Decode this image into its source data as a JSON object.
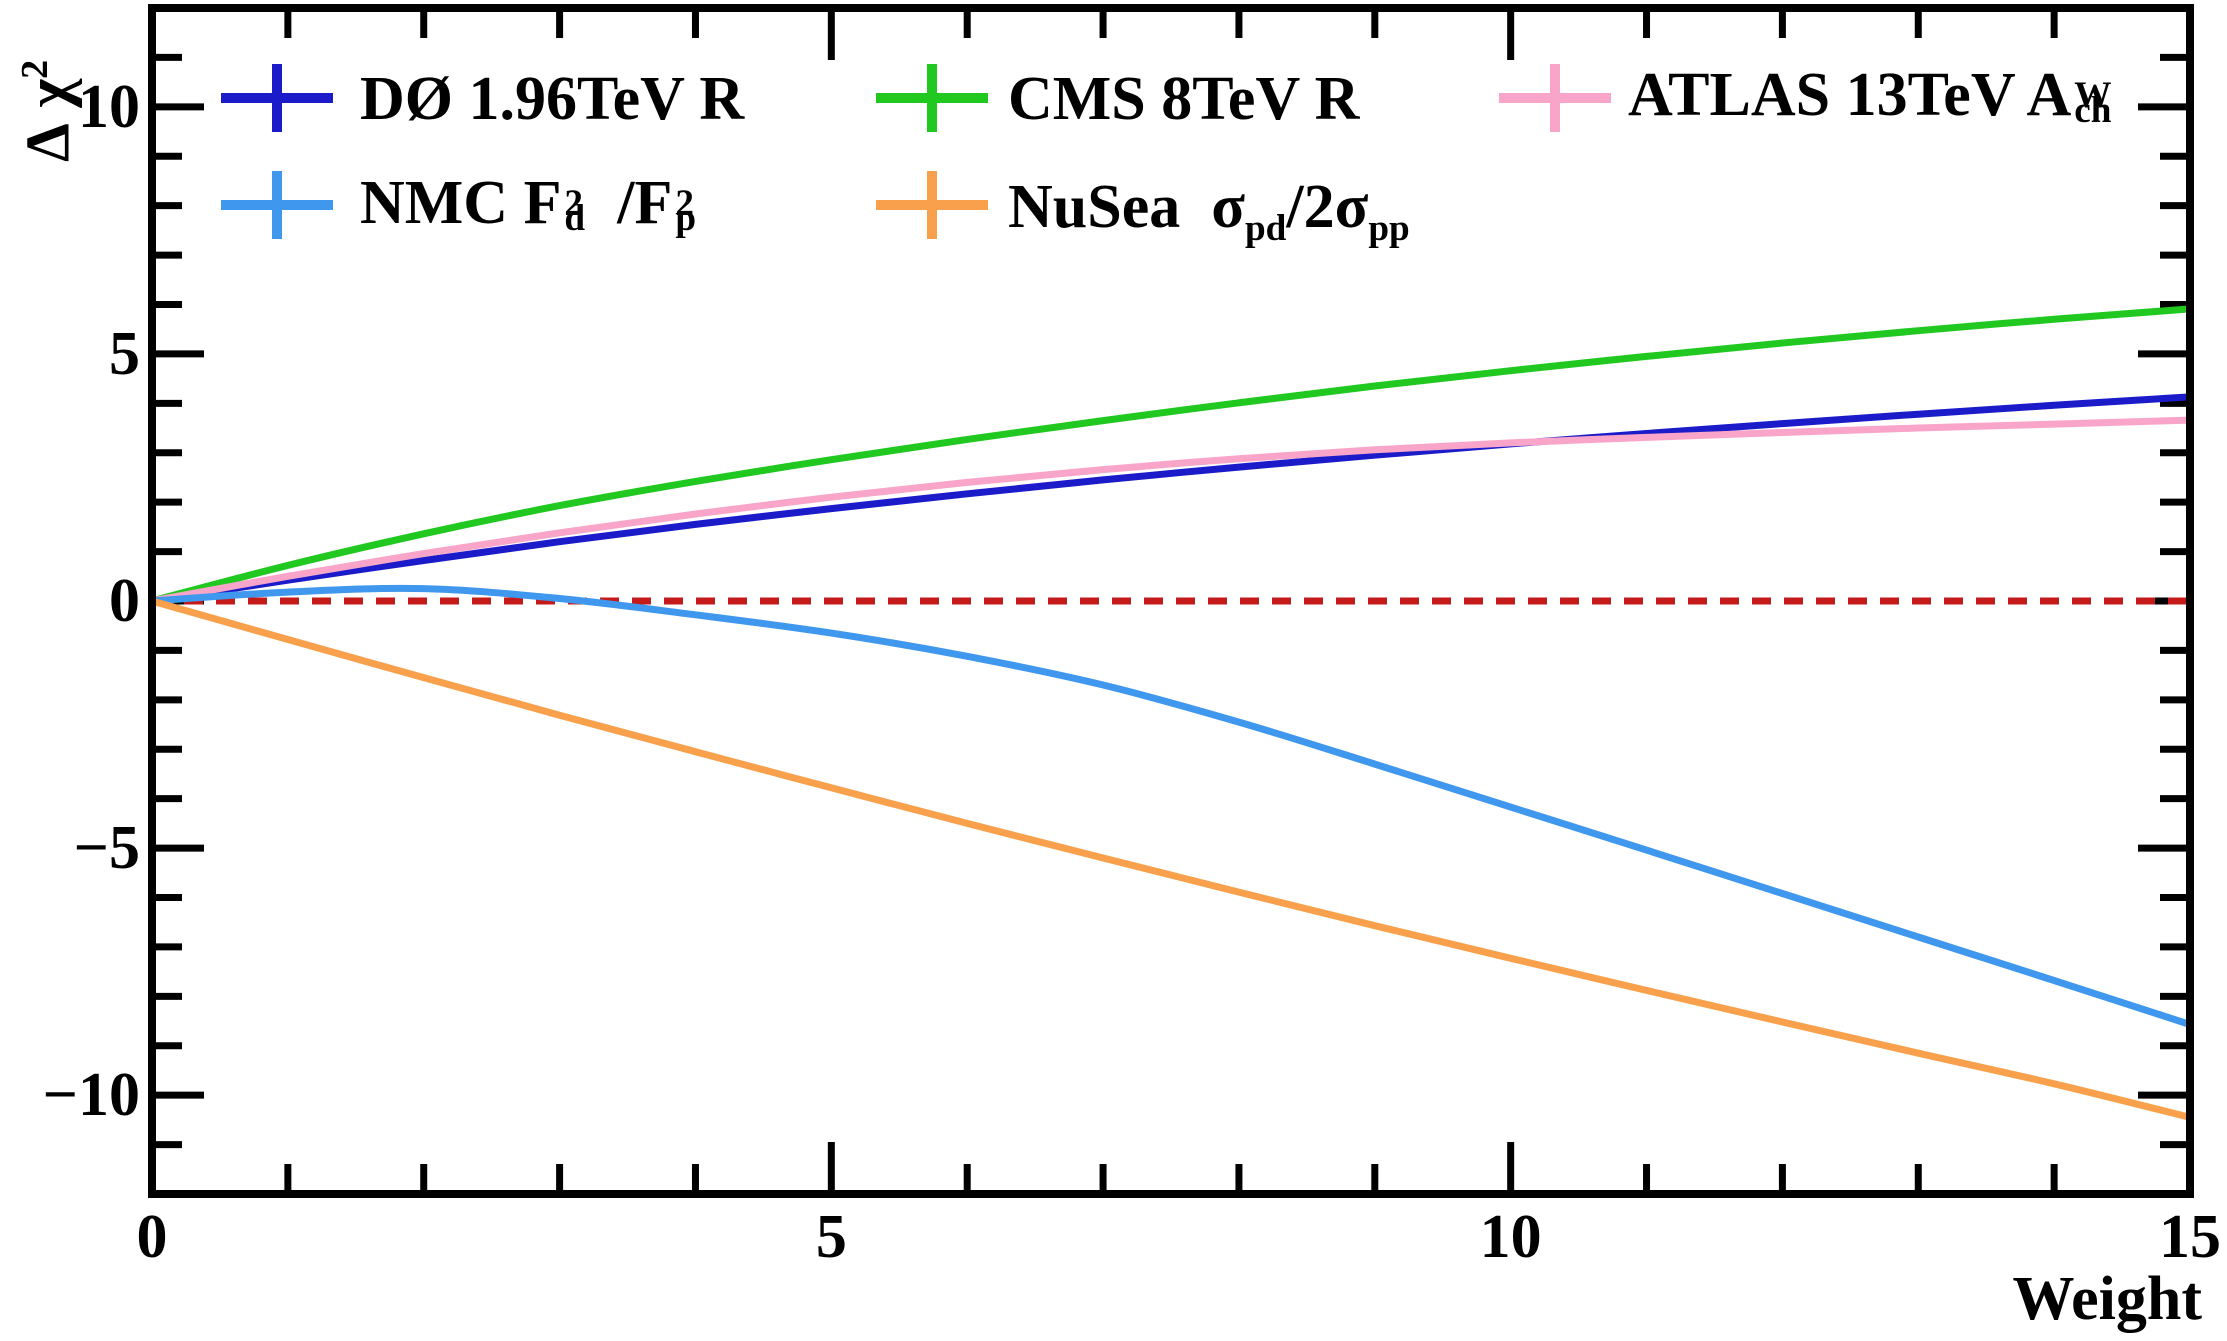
{
  "legend": {
    "rows": 2,
    "columns": 3,
    "items": [
      {
        "label": "DØ 1.96TeV R",
        "marker": "plus",
        "color": "#1B1BC9",
        "parts": [
          {
            "text": "DØ 1.96TeV R"
          }
        ]
      },
      {
        "label": "CMS 8TeV R",
        "marker": "plus",
        "color": "#20C820",
        "parts": [
          {
            "text": "CMS 8TeV R"
          }
        ]
      },
      {
        "label": "ATLAS 13TeV A_ch^W",
        "marker": "plus",
        "color": "#F9A5C9",
        "parts": [
          {
            "text": "ATLAS 13TeV A"
          },
          {
            "sup": "W",
            "sub": "ch"
          }
        ]
      },
      {
        "label": "NMC F_d^2/F_p^2",
        "marker": "plus",
        "color": "#3F97EE",
        "parts": [
          {
            "text": "NMC F"
          },
          {
            "sup": "2",
            "sub": "d"
          },
          {
            "text": "/F"
          },
          {
            "sup": "2",
            "sub": "p"
          }
        ]
      },
      {
        "label": "NuSea σ_pd/2σ_pp",
        "marker": "plus",
        "color": "#F8A04C",
        "parts": [
          {
            "text": "NuSea  σ"
          },
          {
            "sub": "pd"
          },
          {
            "text": "/2σ"
          },
          {
            "sub": "pp"
          }
        ]
      }
    ]
  },
  "chart_data": {
    "type": "line",
    "title": "",
    "xlabel": "Weight",
    "ylabel": "Δ χ²",
    "ylabel_parts": {
      "delta": "Δ ",
      "chi": "χ",
      "exp": "2"
    },
    "xlim": [
      0,
      15
    ],
    "ylim": [
      -12,
      12
    ],
    "grid": false,
    "legend_position": "top-inside",
    "x_ticks": {
      "major": [
        {
          "v": 0,
          "label": "0"
        },
        {
          "v": 5,
          "label": "5"
        },
        {
          "v": 10,
          "label": "10"
        },
        {
          "v": 15,
          "label": "15"
        }
      ],
      "minor_step": 1
    },
    "y_ticks": {
      "major": [
        {
          "v": -10,
          "label": "−10"
        },
        {
          "v": -5,
          "label": "−5"
        },
        {
          "v": 0,
          "label": "0"
        },
        {
          "v": 5,
          "label": "5"
        },
        {
          "v": 10,
          "label": "10"
        }
      ],
      "minor_step": 1
    },
    "reference_line": {
      "y": 0,
      "color": "#C41A1A",
      "style": "dashed"
    },
    "x": [
      0,
      1,
      2,
      3,
      4,
      5,
      6,
      7,
      8,
      9,
      10,
      11,
      12,
      13,
      14,
      15
    ],
    "series": [
      {
        "name": "DØ 1.96TeV R",
        "color": "#1B1BC9",
        "values": [
          0,
          0.42,
          0.82,
          1.2,
          1.55,
          1.87,
          2.17,
          2.45,
          2.71,
          2.95,
          3.18,
          3.39,
          3.59,
          3.78,
          3.96,
          4.13
        ]
      },
      {
        "name": "CMS 8TeV R",
        "color": "#20C820",
        "values": [
          0,
          0.72,
          1.36,
          1.93,
          2.42,
          2.86,
          3.27,
          3.65,
          4.01,
          4.35,
          4.66,
          4.95,
          5.22,
          5.47,
          5.7,
          5.91
        ]
      },
      {
        "name": "ATLAS 13TeV A_ch^W",
        "color": "#F9A5C9",
        "values": [
          0,
          0.5,
          0.96,
          1.38,
          1.76,
          2.1,
          2.4,
          2.66,
          2.88,
          3.06,
          3.2,
          3.31,
          3.41,
          3.5,
          3.58,
          3.66
        ]
      },
      {
        "name": "NMC F_d^2/F_p^2",
        "color": "#3F97EE",
        "values": [
          0,
          0.18,
          0.25,
          0.05,
          -0.28,
          -0.65,
          -1.12,
          -1.7,
          -2.45,
          -3.3,
          -4.17,
          -5.04,
          -5.92,
          -6.8,
          -7.68,
          -8.57
        ]
      },
      {
        "name": "NuSea σ_pd/2σ_pp",
        "color": "#F8A04C",
        "values": [
          0,
          -0.78,
          -1.55,
          -2.31,
          -3.05,
          -3.78,
          -4.5,
          -5.2,
          -5.89,
          -6.57,
          -7.23,
          -7.88,
          -8.52,
          -9.15,
          -9.77,
          -10.45
        ]
      }
    ]
  }
}
